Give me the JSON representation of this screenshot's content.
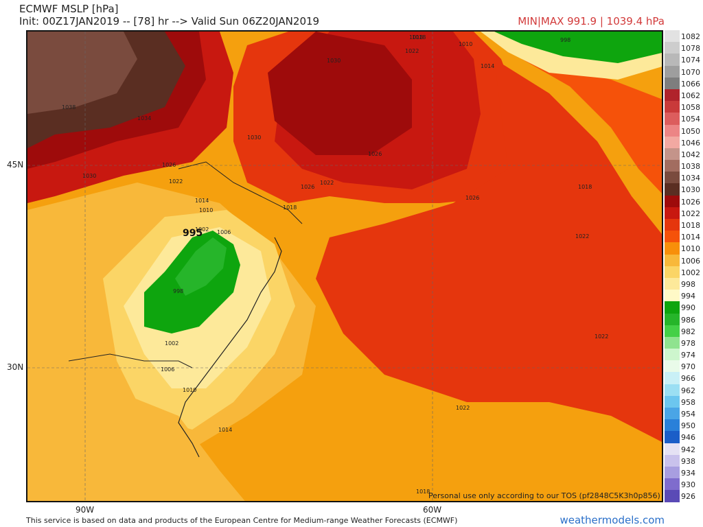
{
  "header": {
    "title": "ECMWF MSLP [hPa]",
    "subtitle": "Init: 00Z17JAN2019 -- [78] hr --> Valid Sun 06Z20JAN2019",
    "minmax": "MIN|MAX 991.9 | 1039.4 hPa"
  },
  "axes": {
    "lat_labels": [
      "45N",
      "30N"
    ],
    "lon_labels": [
      "90W",
      "60W"
    ]
  },
  "low_center": "995",
  "isobar_labels": [
    "1038",
    "1034",
    "1030",
    "1030",
    "1026",
    "1022",
    "1018",
    "1014",
    "1010",
    "1006",
    "1002",
    "998",
    "1002",
    "1006",
    "1010",
    "1014",
    "1018",
    "1022",
    "1026",
    "1026",
    "1018",
    "1022",
    "1022",
    "1022",
    "1018",
    "1030",
    "1026",
    "1022",
    "1018",
    "1014",
    "1010",
    "998"
  ],
  "colorbar": {
    "levels": [
      "1082",
      "1078",
      "1074",
      "1070",
      "1066",
      "1062",
      "1058",
      "1054",
      "1050",
      "1046",
      "1042",
      "1038",
      "1034",
      "1030",
      "1026",
      "1022",
      "1018",
      "1014",
      "1010",
      "1006",
      "1002",
      "998",
      "994",
      "990",
      "986",
      "982",
      "978",
      "974",
      "970",
      "966",
      "962",
      "958",
      "954",
      "950",
      "946",
      "942",
      "938",
      "934",
      "930",
      "926"
    ],
    "colors": [
      "#e2e2e2",
      "#cdcdcd",
      "#b8b8b8",
      "#9e9e9e",
      "#7e7e7e",
      "#b0232b",
      "#c93a3a",
      "#dc5d5d",
      "#ec8585",
      "#f2a9a2",
      "#c4948a",
      "#a26d60",
      "#7a4b3e",
      "#5a2e22",
      "#9e0b0b",
      "#c81810",
      "#e5360d",
      "#f5520a",
      "#f88f0a",
      "#f8b83a",
      "#fbd566",
      "#fde99a",
      "#fff9c7",
      "#0ea50e",
      "#26b52a",
      "#44d047",
      "#8fe38f",
      "#cdf6cd",
      "#e9fbe9",
      "#c9f0f6",
      "#9bdff3",
      "#6cc6ef",
      "#4aa5e6",
      "#2a80d9",
      "#1b5ec8",
      "#e5e2f4",
      "#c9c2ec",
      "#a89ee0",
      "#7f6ccd",
      "#5a4ab6"
    ]
  },
  "footer": "This service is based on data and products of the European Centre for Medium-range Weather Forecasts (ECMWF)",
  "brand": "weathermodels.com",
  "tos": "Personal use only according to our TOS (pf2848C5K3h0p856)"
}
